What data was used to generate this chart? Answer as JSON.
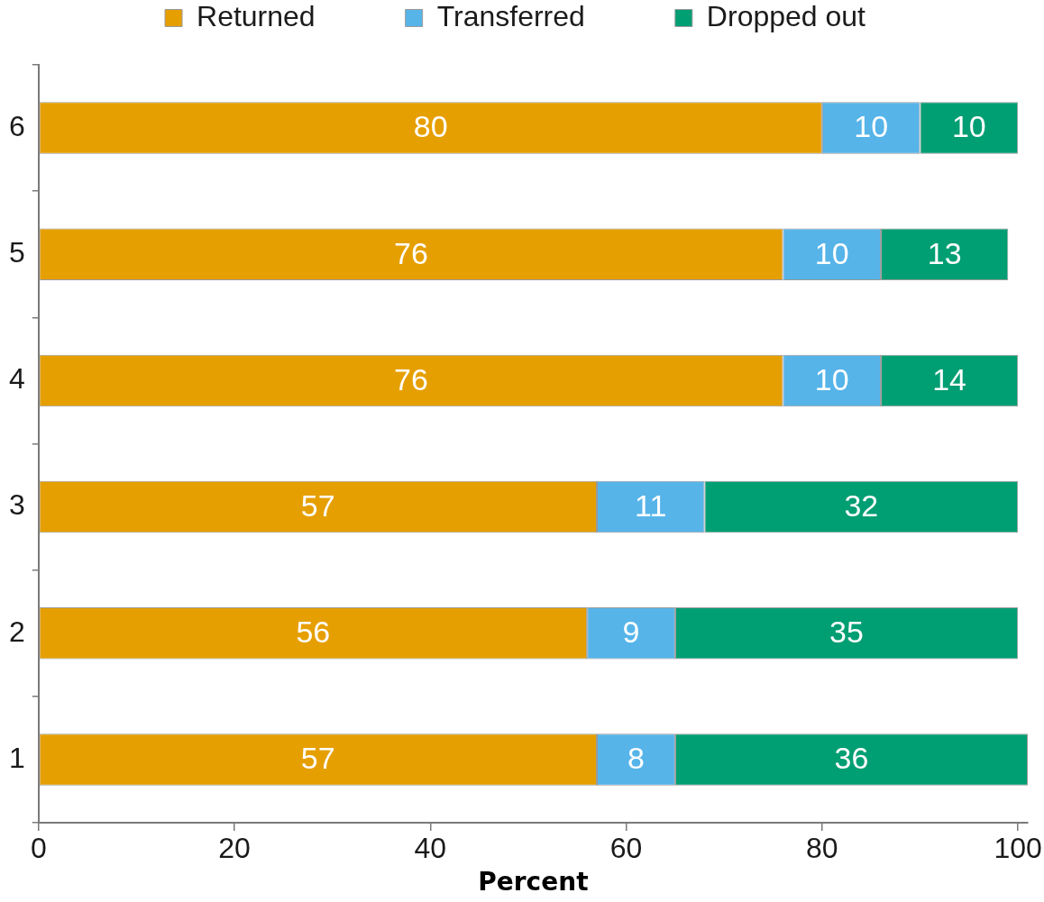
{
  "chart_data": {
    "type": "bar",
    "orientation": "horizontal",
    "stacked": true,
    "xlabel": "Percent",
    "categories": [
      "6",
      "5",
      "4",
      "3",
      "2",
      "1"
    ],
    "series": [
      {
        "name": "Returned",
        "color": "#e69f00",
        "values": [
          80,
          76,
          76,
          57,
          56,
          57
        ]
      },
      {
        "name": "Transferred",
        "color": "#56b4e9",
        "values": [
          10,
          10,
          10,
          11,
          9,
          8
        ]
      },
      {
        "name": "Dropped out",
        "color": "#009e73",
        "values": [
          10,
          13,
          14,
          32,
          35,
          36
        ]
      }
    ],
    "xlim": [
      0,
      101
    ],
    "xticks": [
      0,
      20,
      40,
      60,
      80,
      100
    ],
    "data_labels": true,
    "legend": "top"
  }
}
